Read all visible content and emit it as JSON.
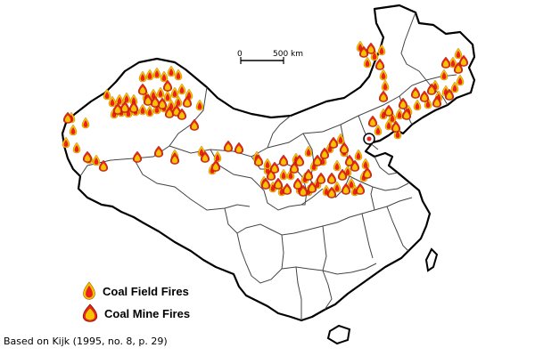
{
  "map": {
    "region": "China",
    "scale_bar": {
      "start_label": "0",
      "end_label": "500 km"
    },
    "legend": [
      {
        "label": "Coal Field Fires",
        "icon": "flame-red-icon",
        "color": "#e8231a"
      },
      {
        "label": "Coal Mine Fires",
        "icon": "flame-yellow-icon",
        "color": "#f5c400"
      }
    ],
    "colors": {
      "border": "#000000",
      "province_lines": "#444444",
      "flame_outer": "#f5c400",
      "flame_inner": "#e8231a"
    },
    "fire_counts": {
      "coal_field_fires": 91,
      "coal_mine_fires": 66
    }
  },
  "source": "Based on Kijk (1995, no. 8, p. 29)"
}
